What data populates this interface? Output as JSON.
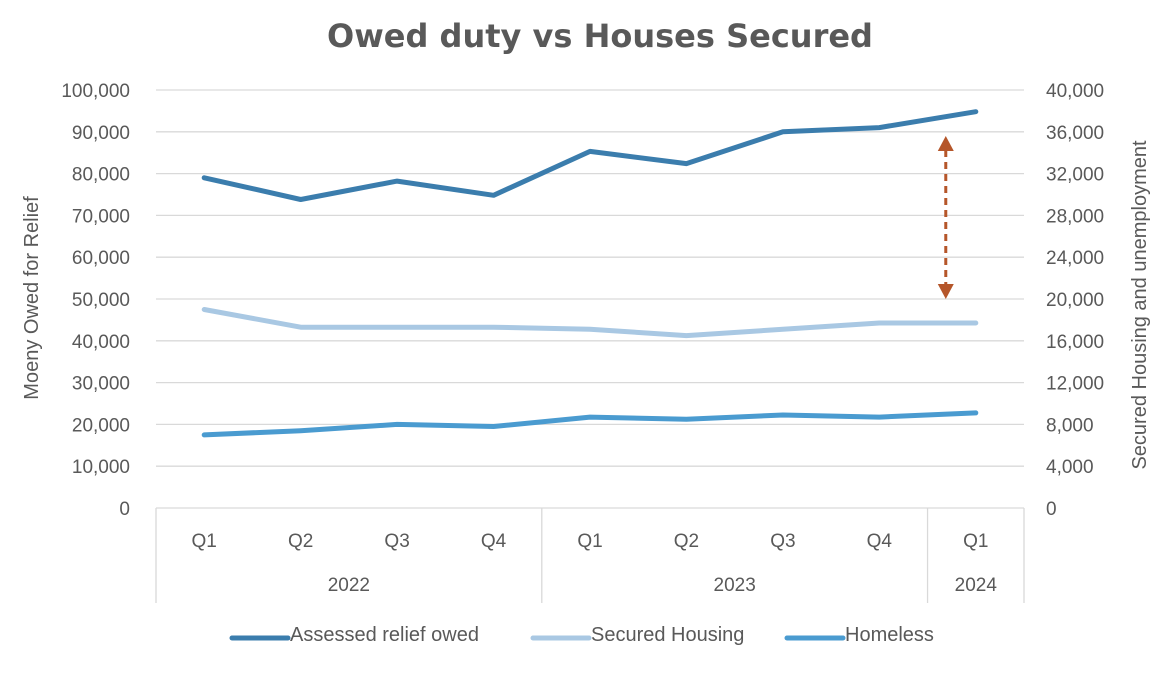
{
  "chart_data": {
    "type": "line",
    "title": "Owed duty vs Houses Secured",
    "categories": [
      "Q1",
      "Q2",
      "Q3",
      "Q4",
      "Q1",
      "Q2",
      "Q3",
      "Q4",
      "Q1"
    ],
    "category_groups": [
      {
        "label": "2022",
        "count": 4
      },
      {
        "label": "2023",
        "count": 4
      },
      {
        "label": "2024",
        "count": 1
      }
    ],
    "y_left": {
      "label": "Moeny Owed for Relief",
      "range": [
        0,
        100000
      ],
      "ticks": [
        "0",
        "10,000",
        "20,000",
        "30,000",
        "40,000",
        "50,000",
        "60,000",
        "70,000",
        "80,000",
        "90,000",
        "100,000"
      ]
    },
    "y_right": {
      "label": "Secured Housing and  unemployment",
      "range": [
        0,
        40000
      ],
      "ticks": [
        "0",
        "4,000",
        "8,000",
        "12,000",
        "16,000",
        "20,000",
        "24,000",
        "28,000",
        "32,000",
        "36,000",
        "40,000"
      ]
    },
    "series": [
      {
        "name": "Assessed relief owed",
        "axis": "left",
        "color": "#3B7DAD",
        "values": [
          79000,
          73800,
          78200,
          74800,
          85300,
          82400,
          90000,
          91000,
          94800
        ]
      },
      {
        "name": "Secured Housing",
        "axis": "right",
        "color": "#A9C8E3",
        "values": [
          19000,
          17300,
          17300,
          17300,
          17100,
          16500,
          17100,
          17700,
          17700
        ]
      },
      {
        "name": "Homeless",
        "axis": "right",
        "color": "#4A9BD0",
        "values": [
          7000,
          7400,
          8000,
          7800,
          8700,
          8500,
          8900,
          8700,
          9100
        ]
      }
    ],
    "annotation": {
      "type": "double-arrow",
      "category_index": 8,
      "color": "#B5562A",
      "from_left_value": 89000,
      "to_right_value": 20000
    },
    "grid": true,
    "legend": "bottom"
  }
}
